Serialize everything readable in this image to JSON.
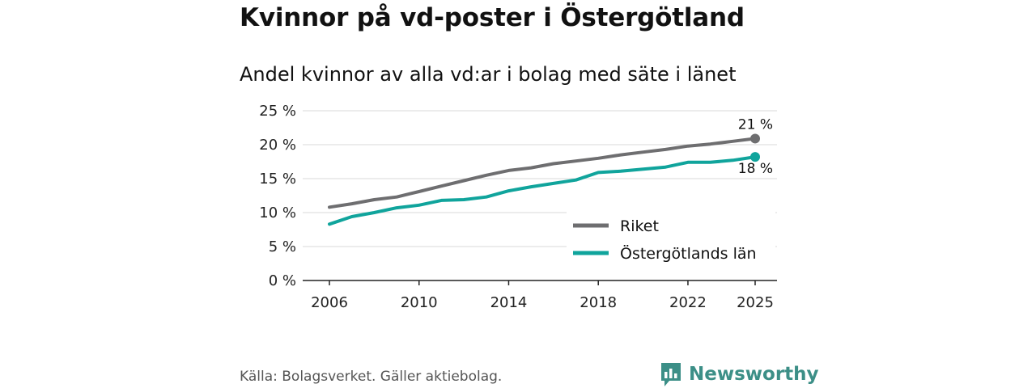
{
  "title": "Kvinnor på vd-poster i Östergötland",
  "subtitle": "Andel kvinnor av alla vd:ar i bolag med säte i länet",
  "source": "Källa: Bolagsverket. Gäller aktiebolag.",
  "brand": "Newsworthy",
  "chart_data": {
    "type": "line",
    "title": "Kvinnor på vd-poster i Östergötland",
    "subtitle": "Andel kvinnor av alla vd:ar i bolag med säte i länet",
    "xlabel": "",
    "ylabel": "",
    "x": [
      2006,
      2007,
      2008,
      2009,
      2010,
      2011,
      2012,
      2013,
      2014,
      2015,
      2016,
      2017,
      2018,
      2019,
      2020,
      2021,
      2022,
      2023,
      2024,
      2025
    ],
    "x_ticks": [
      2006,
      2010,
      2014,
      2018,
      2022,
      2025
    ],
    "x_tick_labels": [
      "2006",
      "2010",
      "2014",
      "2018",
      "2022",
      "2025"
    ],
    "y_ticks": [
      0,
      5,
      10,
      15,
      20,
      25
    ],
    "y_tick_labels": [
      "0 %",
      "5 %",
      "10 %",
      "15 %",
      "20 %",
      "25 %"
    ],
    "ylim": [
      0,
      25
    ],
    "xlim": [
      2006,
      2025
    ],
    "grid": true,
    "legend_position": "bottom-right",
    "series": [
      {
        "name": "Riket",
        "color": "#6e6e70",
        "end_label": "21 %",
        "values": [
          10.8,
          11.3,
          11.9,
          12.3,
          13.1,
          13.9,
          14.7,
          15.5,
          16.2,
          16.6,
          17.2,
          17.6,
          18.0,
          18.5,
          18.9,
          19.3,
          19.8,
          20.1,
          20.5,
          20.9
        ]
      },
      {
        "name": "Östergötlands län",
        "color": "#10a49c",
        "end_label": "18 %",
        "values": [
          8.3,
          9.4,
          10.0,
          10.7,
          11.1,
          11.8,
          11.9,
          12.3,
          13.2,
          13.8,
          14.3,
          14.8,
          15.9,
          16.1,
          16.4,
          16.7,
          17.4,
          17.4,
          17.7,
          18.2
        ]
      }
    ]
  }
}
